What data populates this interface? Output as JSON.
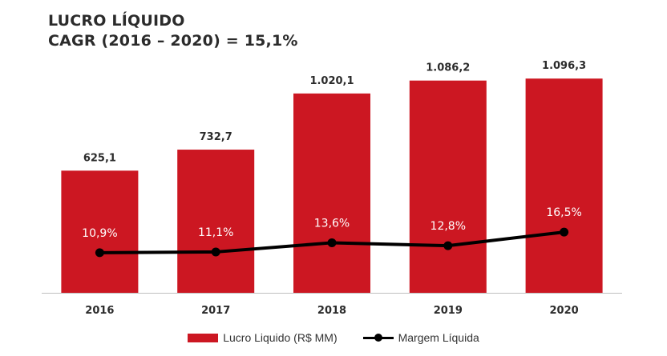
{
  "title": "LUCRO LÍQUIDO",
  "subtitle": "CAGR (2016 – 2020) = 15,1%",
  "colors": {
    "bar": "#cc1722",
    "line": "#000000",
    "axis": "#bfbfbf",
    "text": "#2b2b2b"
  },
  "legend": {
    "bar_label": "Lucro Liquido (R$ MM)",
    "line_label": "Margem Líquida"
  },
  "chart_data": {
    "type": "bar",
    "categories": [
      "2016",
      "2017",
      "2018",
      "2019",
      "2020"
    ],
    "series": [
      {
        "name": "Lucro Liquido (R$ MM)",
        "type": "bar",
        "values": [
          625.1,
          732.7,
          1020.1,
          1086.2,
          1096.3
        ],
        "labels": [
          "625,1",
          "732,7",
          "1.020,1",
          "1.086,2",
          "1.096,3"
        ]
      },
      {
        "name": "Margem Líquida",
        "type": "line",
        "values": [
          10.9,
          11.1,
          13.6,
          12.8,
          16.5
        ],
        "labels": [
          "10,9%",
          "11,1%",
          "13,6%",
          "12,8%",
          "16,5%"
        ]
      }
    ],
    "ylim": [
      0,
      1130
    ],
    "y2lim": [
      0,
      60
    ],
    "grid": false,
    "legend_position": "bottom"
  }
}
